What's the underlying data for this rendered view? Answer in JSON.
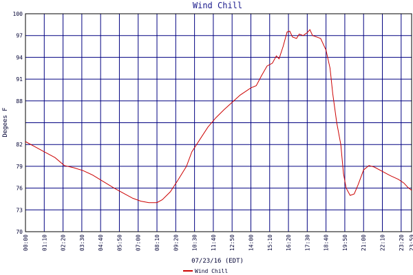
{
  "chart_data": {
    "type": "line",
    "title": "Wind Chill",
    "x_label": "07/23/16 (EDT)",
    "y_label": "Degees F",
    "xlim": [
      0,
      1439
    ],
    "ylim": [
      70,
      100
    ],
    "yticks": [
      70,
      73,
      76,
      79,
      82,
      {
        "value": 85,
        "label": null
      },
      88,
      91,
      94,
      97,
      100
    ],
    "xticks": [
      {
        "value": 0,
        "label": "00:00"
      },
      {
        "value": 70,
        "label": "01:10"
      },
      {
        "value": 140,
        "label": "02:20"
      },
      {
        "value": 210,
        "label": "03:30"
      },
      {
        "value": 280,
        "label": "04:40"
      },
      {
        "value": 350,
        "label": "05:50"
      },
      {
        "value": 420,
        "label": "07:00"
      },
      {
        "value": 490,
        "label": "08:10"
      },
      {
        "value": 560,
        "label": "09:20"
      },
      {
        "value": 630,
        "label": "10:30"
      },
      {
        "value": 700,
        "label": "11:40"
      },
      {
        "value": 770,
        "label": "12:50"
      },
      {
        "value": 840,
        "label": "14:00"
      },
      {
        "value": 910,
        "label": "15:10"
      },
      {
        "value": 980,
        "label": "16:20"
      },
      {
        "value": 1050,
        "label": "17:30"
      },
      {
        "value": 1120,
        "label": "18:40"
      },
      {
        "value": 1190,
        "label": "19:50"
      },
      {
        "value": 1260,
        "label": "21:00"
      },
      {
        "value": 1330,
        "label": "22:10"
      },
      {
        "value": 1400,
        "label": "23:20"
      },
      {
        "value": 1439,
        "label": "23:59"
      }
    ],
    "grid": true,
    "x": [
      0,
      30,
      70,
      110,
      145,
      180,
      215,
      250,
      290,
      330,
      370,
      400,
      430,
      460,
      490,
      510,
      540,
      570,
      600,
      620,
      650,
      680,
      710,
      740,
      770,
      800,
      840,
      860,
      880,
      900,
      920,
      935,
      945,
      960,
      975,
      985,
      995,
      1010,
      1020,
      1035,
      1050,
      1060,
      1070,
      1085,
      1100,
      1120,
      1135,
      1145,
      1160,
      1175,
      1185,
      1195,
      1210,
      1225,
      1240,
      1260,
      1280,
      1300,
      1330,
      1360,
      1390,
      1410,
      1425,
      1439
    ],
    "series": [
      {
        "name": "Wind Chill",
        "color": "#cc0000",
        "values": [
          82.4,
          81.8,
          81.0,
          80.2,
          79.1,
          78.8,
          78.4,
          77.8,
          76.9,
          76.0,
          75.2,
          74.6,
          74.2,
          74.0,
          74.0,
          74.4,
          75.5,
          77.2,
          79.0,
          81.0,
          82.7,
          84.4,
          85.7,
          86.8,
          87.8,
          88.8,
          89.8,
          90.1,
          91.5,
          92.8,
          93.2,
          94.2,
          93.8,
          95.5,
          97.5,
          97.6,
          96.8,
          96.6,
          97.2,
          97.0,
          97.4,
          97.8,
          97.0,
          96.8,
          96.6,
          95.0,
          92.5,
          89.0,
          85.0,
          82.0,
          78.0,
          76.0,
          75.0,
          75.2,
          76.5,
          78.5,
          79.1,
          78.9,
          78.3,
          77.7,
          77.2,
          76.7,
          76.1,
          75.7
        ]
      }
    ]
  }
}
